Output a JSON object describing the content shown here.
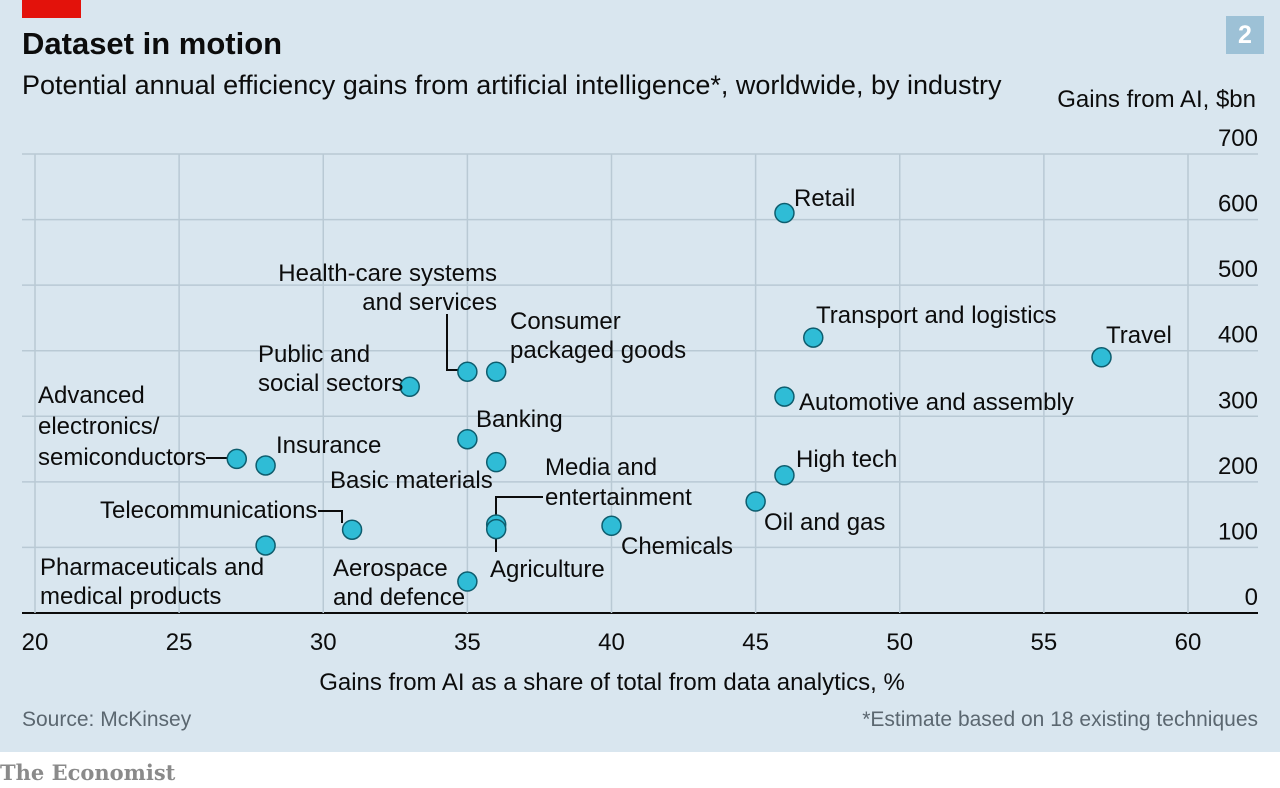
{
  "header": {
    "title": "Dataset in motion",
    "subtitle": "Potential annual efficiency gains from artificial intelligence*, worldwide, by industry",
    "chart_number": "2"
  },
  "footer": {
    "source": "Source: McKinsey",
    "footnote": "*Estimate based on 18 existing techniques",
    "publisher": "The Economist"
  },
  "colors": {
    "background": "#d9e6ef",
    "dot_fill": "#2fbcd6",
    "dot_stroke": "#0e5d6e",
    "accent_red": "#e3120b",
    "number_badge": "#9dc1d6"
  },
  "chart_data": {
    "type": "scatter",
    "title": "Dataset in motion",
    "subtitle": "Potential annual efficiency gains from artificial intelligence*, worldwide, by industry",
    "xlabel": "Gains from AI as a share of total from data analytics, %",
    "ylabel": "Gains from AI, $bn",
    "xlim": [
      20,
      62
    ],
    "ylim": [
      0,
      700
    ],
    "x_ticks": [
      20,
      25,
      30,
      35,
      40,
      45,
      50,
      55,
      60
    ],
    "y_ticks": [
      0,
      100,
      200,
      300,
      400,
      500,
      600,
      700
    ],
    "grid": true,
    "points": [
      {
        "label": [
          "Retail"
        ],
        "x": 46,
        "y": 610
      },
      {
        "label": [
          "Travel"
        ],
        "x": 57,
        "y": 390
      },
      {
        "label": [
          "Transport and logistics"
        ],
        "x": 47,
        "y": 420
      },
      {
        "label": [
          "Automotive and assembly"
        ],
        "x": 46,
        "y": 330
      },
      {
        "label": [
          "High tech"
        ],
        "x": 46,
        "y": 210
      },
      {
        "label": [
          "Oil and gas"
        ],
        "x": 45,
        "y": 170
      },
      {
        "label": [
          "Chemicals"
        ],
        "x": 40,
        "y": 133
      },
      {
        "label": [
          "Media and",
          "entertainment"
        ],
        "x": 36,
        "y": 135
      },
      {
        "label": [
          "Agriculture"
        ],
        "x": 36,
        "y": 128
      },
      {
        "label": [
          "Health-care systems",
          "and services"
        ],
        "x": 35,
        "y": 368
      },
      {
        "label": [
          "Consumer",
          "packaged goods"
        ],
        "x": 36,
        "y": 368
      },
      {
        "label": [
          "Public and",
          "social sectors"
        ],
        "x": 33,
        "y": 345
      },
      {
        "label": [
          "Banking"
        ],
        "x": 35,
        "y": 265
      },
      {
        "label": [
          "Basic materials"
        ],
        "x": 36,
        "y": 230
      },
      {
        "label": [
          "Advanced",
          "electronics/",
          "semiconductors"
        ],
        "x": 27,
        "y": 235
      },
      {
        "label": [
          "Insurance"
        ],
        "x": 28,
        "y": 225
      },
      {
        "label": [
          "Telecommunications"
        ],
        "x": 31,
        "y": 127
      },
      {
        "label": [
          "Pharmaceuticals and",
          "medical products"
        ],
        "x": 28,
        "y": 103
      },
      {
        "label": [
          "Aerospace",
          "and defence"
        ],
        "x": 35,
        "y": 48
      }
    ]
  }
}
